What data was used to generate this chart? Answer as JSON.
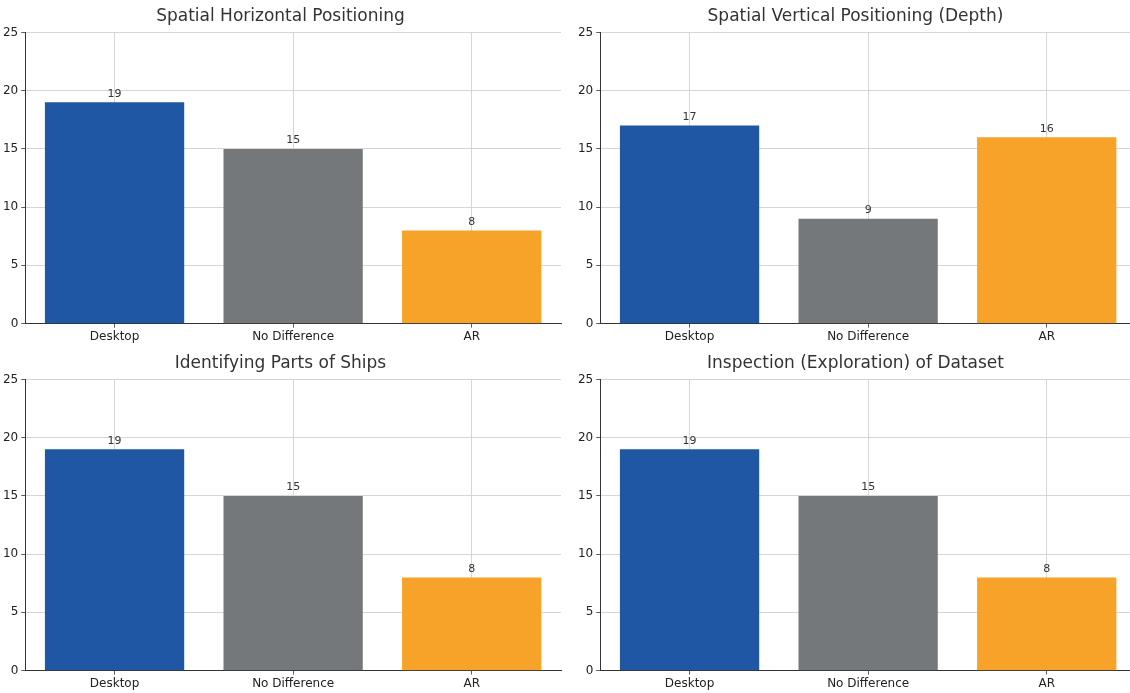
{
  "chart_data": [
    {
      "type": "bar",
      "title": "Spatial Horizontal Positioning",
      "categories": [
        "Desktop",
        "No Difference",
        "AR"
      ],
      "values": [
        19,
        15,
        8
      ],
      "colors": [
        "#1f57a5",
        "#75787b",
        "#f7a229"
      ],
      "ylim": [
        0,
        25
      ],
      "yticks": [
        0,
        5,
        10,
        15,
        20,
        25
      ],
      "grid": true,
      "data_labels": true
    },
    {
      "type": "bar",
      "title": "Spatial Vertical Positioning (Depth)",
      "categories": [
        "Desktop",
        "No Difference",
        "AR"
      ],
      "values": [
        17,
        9,
        16
      ],
      "colors": [
        "#1f57a5",
        "#75787b",
        "#f7a229"
      ],
      "ylim": [
        0,
        25
      ],
      "yticks": [
        0,
        5,
        10,
        15,
        20,
        25
      ],
      "grid": true,
      "data_labels": true
    },
    {
      "type": "bar",
      "title": "Identifying Parts of Ships",
      "categories": [
        "Desktop",
        "No Difference",
        "AR"
      ],
      "values": [
        19,
        15,
        8
      ],
      "colors": [
        "#1f57a5",
        "#75787b",
        "#f7a229"
      ],
      "ylim": [
        0,
        25
      ],
      "yticks": [
        0,
        5,
        10,
        15,
        20,
        25
      ],
      "grid": true,
      "data_labels": true
    },
    {
      "type": "bar",
      "title": "Inspection (Exploration) of Dataset",
      "categories": [
        "Desktop",
        "No Difference",
        "AR"
      ],
      "values": [
        19,
        15,
        8
      ],
      "colors": [
        "#1f57a5",
        "#75787b",
        "#f7a229"
      ],
      "ylim": [
        0,
        25
      ],
      "yticks": [
        0,
        5,
        10,
        15,
        20,
        25
      ],
      "grid": true,
      "data_labels": true
    }
  ]
}
